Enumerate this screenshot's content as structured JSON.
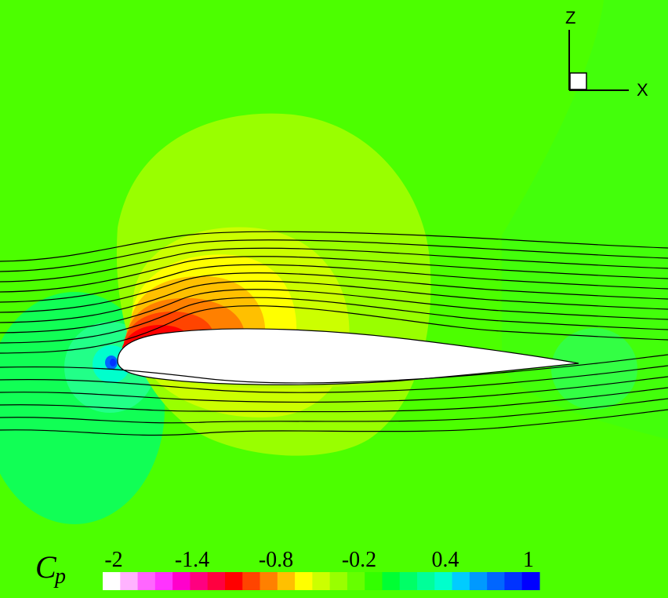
{
  "axes_triad": {
    "z_label": "Z",
    "x_label": "X"
  },
  "legend": {
    "symbol": "C",
    "subscript": "p",
    "tick_labels": [
      "-2",
      "-1.4",
      "-0.8",
      "-0.2",
      "0.4",
      "1"
    ],
    "color_bands": [
      "#ffffff",
      "#ffb3ff",
      "#ff66ff",
      "#ff33ff",
      "#ff00cc",
      "#ff0080",
      "#ff0040",
      "#ff0000",
      "#ff4400",
      "#ff8000",
      "#ffc000",
      "#ffff00",
      "#ccff00",
      "#99ff00",
      "#66ff00",
      "#33ff00",
      "#00ff33",
      "#00ff66",
      "#00ff99",
      "#00ffcc",
      "#00ccff",
      "#0099ff",
      "#0066ff",
      "#0033ff",
      "#0000ff"
    ]
  },
  "field_colors": {
    "background": "#4cff00",
    "outer_halo": "#99ff00",
    "mid_halo": "#ccff00",
    "yellow": "#ffff00",
    "gold": "#ffc000",
    "orange": "#ff8000",
    "red_orange": "#ff4400",
    "red": "#ff0000",
    "stagnation_outer": "#00ff66",
    "stagnation_mid": "#00ffcc",
    "stagnation_core": "#0033ff",
    "wake": "#33ff33",
    "airfoil": "#ffffff"
  }
}
